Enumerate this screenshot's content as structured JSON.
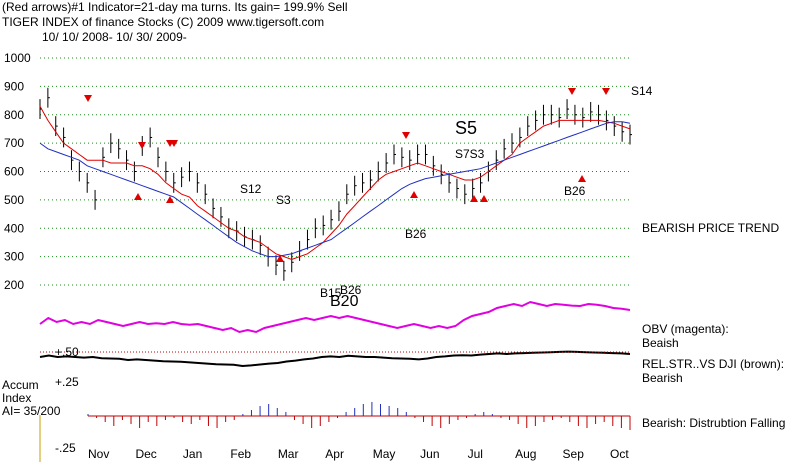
{
  "header": {
    "line1": "(Red arrows)#1 Indicator=21-day ma turns. Its gain= 199.9% Sell",
    "line2": "TIGER INDEX of finance Stocks  (C) 2009  www.tigersoft.com",
    "line3": "10/ 10/ 2008- 10/ 30/ 2009-"
  },
  "chart_data": {
    "type": "line",
    "price_axis": {
      "ticks": [
        "1000",
        "900",
        "800",
        "700",
        "600",
        "500",
        "400",
        "300",
        "200"
      ],
      "ylim": [
        150,
        1050
      ]
    },
    "x_months": [
      "Nov",
      "Dec",
      "Jan",
      "Feb",
      "Mar",
      "Apr",
      "May",
      "Jun",
      "Jul",
      "Aug",
      "Sep",
      "Oct"
    ],
    "price_close": [
      820,
      860,
      760,
      720,
      640,
      600,
      560,
      500,
      650,
      700,
      680,
      640,
      600,
      690,
      720,
      650,
      600,
      560,
      580,
      600,
      560,
      520,
      470,
      440,
      400,
      390,
      370,
      360,
      340,
      300,
      270,
      250,
      280,
      320,
      360,
      400,
      410,
      430,
      460,
      520,
      550,
      560,
      570,
      600,
      630,
      660,
      650,
      640,
      660,
      660,
      620,
      590,
      560,
      540,
      520,
      540,
      560,
      600,
      640,
      680,
      700,
      720,
      760,
      780,
      800,
      800,
      790,
      820,
      800,
      790,
      810,
      800,
      780,
      760,
      740,
      730
    ],
    "ma21": [
      830,
      780,
      740,
      700,
      680,
      660,
      640,
      640,
      640,
      630,
      630,
      630,
      620,
      620,
      610,
      590,
      560,
      540,
      520,
      510,
      480,
      460,
      440,
      420,
      400,
      390,
      370,
      360,
      350,
      330,
      310,
      300,
      290,
      300,
      310,
      330,
      350,
      380,
      410,
      450,
      480,
      510,
      540,
      570,
      590,
      600,
      610,
      620,
      630,
      620,
      610,
      600,
      590,
      580,
      570,
      570,
      580,
      600,
      620,
      640,
      660,
      700,
      720,
      740,
      760,
      770,
      780,
      780,
      780,
      780,
      780,
      780,
      775,
      770,
      760,
      750
    ],
    "ma_blue": [
      700,
      680,
      670,
      660,
      650,
      640,
      620,
      610,
      600,
      590,
      580,
      570,
      560,
      550,
      540,
      530,
      520,
      510,
      490,
      470,
      450,
      430,
      410,
      390,
      370,
      350,
      335,
      320,
      310,
      300,
      300,
      305,
      310,
      320,
      330,
      340,
      350,
      360,
      380,
      400,
      420,
      440,
      460,
      480,
      500,
      520,
      540,
      555,
      565,
      575,
      580,
      585,
      590,
      595,
      600,
      605,
      610,
      620,
      630,
      640,
      650,
      660,
      670,
      680,
      690,
      700,
      710,
      720,
      730,
      740,
      750,
      760,
      770,
      775,
      775,
      770
    ],
    "obv": [
      0.4,
      0.55,
      0.45,
      0.5,
      0.4,
      0.45,
      0.4,
      0.5,
      0.45,
      0.4,
      0.35,
      0.4,
      0.45,
      0.4,
      0.42,
      0.4,
      0.45,
      0.4,
      0.38,
      0.4,
      0.35,
      0.3,
      0.25,
      0.3,
      0.2,
      0.25,
      0.2,
      0.3,
      0.35,
      0.4,
      0.45,
      0.5,
      0.55,
      0.5,
      0.55,
      0.6,
      0.55,
      0.6,
      0.55,
      0.5,
      0.45,
      0.4,
      0.35,
      0.3,
      0.35,
      0.4,
      0.35,
      0.3,
      0.35,
      0.3,
      0.35,
      0.5,
      0.6,
      0.65,
      0.7,
      0.8,
      0.85,
      0.9,
      0.85,
      0.95,
      0.9,
      0.85,
      0.9,
      0.88,
      0.86,
      0.85,
      0.9,
      0.88,
      0.85,
      0.8,
      0.78,
      0.75
    ],
    "relstr": [
      0.5,
      0.55,
      0.5,
      0.52,
      0.5,
      0.48,
      0.5,
      0.46,
      0.45,
      0.44,
      0.4,
      0.42,
      0.4,
      0.38,
      0.36,
      0.35,
      0.34,
      0.32,
      0.3,
      0.28,
      0.26,
      0.25,
      0.24,
      0.2,
      0.22,
      0.25,
      0.28,
      0.3,
      0.35,
      0.38,
      0.42,
      0.45,
      0.5,
      0.52,
      0.5,
      0.54,
      0.52,
      0.5,
      0.5,
      0.48,
      0.46,
      0.45,
      0.44,
      0.42,
      0.45,
      0.5,
      0.52,
      0.55,
      0.56,
      0.55,
      0.58,
      0.6,
      0.62,
      0.6,
      0.62,
      0.63,
      0.64,
      0.65,
      0.66,
      0.67,
      0.68,
      0.67,
      0.66,
      0.65,
      0.64,
      0.63,
      0.62,
      0.6
    ],
    "accum": [
      0.1,
      -0.1,
      -0.3,
      -0.5,
      -0.2,
      -0.4,
      -0.6,
      -0.3,
      -0.5,
      -0.2,
      -0.1,
      -0.3,
      -0.4,
      -0.2,
      -0.5,
      -0.6,
      -0.3,
      -0.2,
      0.1,
      0.3,
      0.5,
      0.6,
      0.4,
      0.2,
      -0.2,
      -0.4,
      -0.6,
      -0.5,
      -0.3,
      -0.1,
      0.2,
      0.4,
      0.6,
      0.7,
      0.6,
      0.5,
      0.4,
      0.2,
      -0.1,
      -0.3,
      -0.5,
      -0.6,
      -0.4,
      -0.2,
      -0.1,
      0.1,
      0.2,
      0.1,
      -0.1,
      -0.2,
      -0.4,
      -0.6,
      -0.5,
      -0.3,
      -0.2,
      -0.1,
      -0.3,
      -0.5,
      -0.6,
      -0.4,
      -0.3,
      -0.5,
      -0.6,
      -0.7
    ],
    "annotations": {
      "s12": "S12",
      "s3": "S3",
      "s5": "S5",
      "s7s3": "S7S3",
      "s14": "S14",
      "b20": "B20",
      "b26a": "B26",
      "b26b": "B26",
      "b26c": "B26",
      "b26d": "B26",
      "b15": "B15",
      "bearish_trend": "BEARISH PRICE TREND"
    },
    "obv_panel": {
      "label": "OBV (magenta):",
      "status": "Beaish",
      "tick": "+.50"
    },
    "rel_panel": {
      "label": "REL.STR..VS DJI (brown):",
      "status": "Bearish",
      "tick": "+.25"
    },
    "accum_panel": {
      "label_line1": "Accum",
      "label_line2": "Index",
      "label_line3": "AI= 35/200",
      "tick": "-.25",
      "status": "Bearish: Distrubtion Falling"
    },
    "colors": {
      "ma21": "#e00000",
      "ma_blue": "#2030c0",
      "obv": "#e000e0",
      "relstr": "#000000",
      "accum_pos": "#2030c0",
      "accum_neg": "#c00000",
      "grid": "#1a8c1a"
    }
  }
}
